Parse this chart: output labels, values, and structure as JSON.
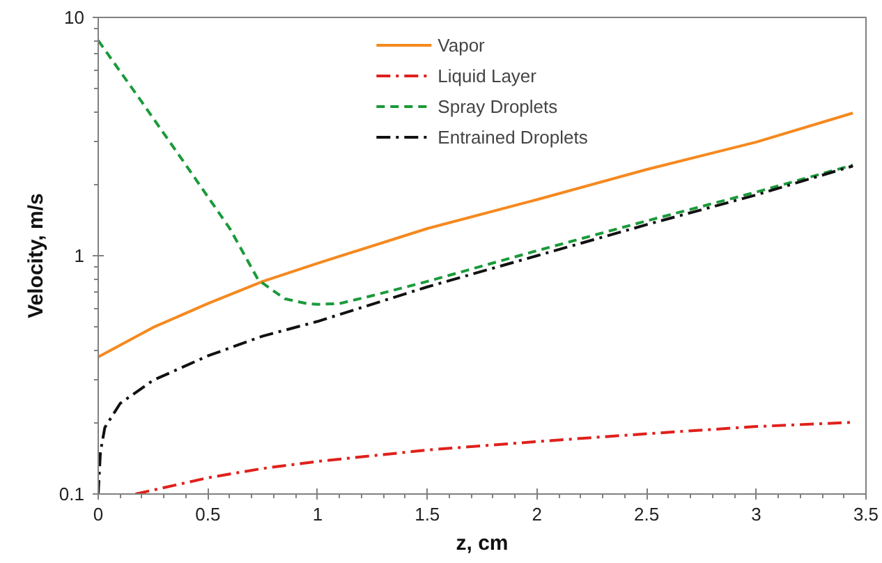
{
  "chart_data": {
    "type": "line",
    "xlabel": "z, cm",
    "ylabel": "Velocity, m/s",
    "log": "y",
    "xlim": [
      0,
      3.5
    ],
    "ylim": [
      0.1,
      10
    ],
    "xticks": [
      0,
      0.5,
      1,
      1.5,
      2,
      2.5,
      3,
      3.5
    ],
    "yticks": [
      0.1,
      1,
      10
    ],
    "grid": false,
    "legend": "top",
    "marker": "none",
    "series": [
      {
        "name": "Vapor",
        "color": "#f5891f",
        "line_style": "solid",
        "x": [
          0,
          0.25,
          0.5,
          0.75,
          1,
          1.5,
          2,
          2.5,
          3,
          3.44
        ],
        "values": [
          0.376,
          0.5,
          0.63,
          0.78,
          0.93,
          1.3,
          1.72,
          2.3,
          3.0,
          3.97
        ]
      },
      {
        "name": "Liquid Layer",
        "color": "#e0201b",
        "line_style": "dashdot",
        "x": [
          0.17,
          0.5,
          0.75,
          1,
          1.5,
          2,
          2.5,
          3,
          3.44
        ],
        "values": [
          0.1,
          0.117,
          0.128,
          0.137,
          0.153,
          0.166,
          0.179,
          0.192,
          0.2
        ]
      },
      {
        "name": "Spray Droplets",
        "color": "#1a9a3a",
        "line_style": "dashed",
        "x": [
          0,
          0.2,
          0.4,
          0.6,
          0.73,
          0.85,
          0.95,
          1,
          1.1,
          1.25,
          1.5,
          2,
          2.5,
          3,
          3.44
        ],
        "values": [
          8.0,
          4.4,
          2.4,
          1.3,
          0.79,
          0.66,
          0.63,
          0.625,
          0.63,
          0.68,
          0.78,
          1.05,
          1.4,
          1.85,
          2.4
        ]
      },
      {
        "name": "Entrained Droplets",
        "color": "#111111",
        "line_style": "dashdot",
        "x": [
          0,
          0.01,
          0.03,
          0.1,
          0.25,
          0.5,
          0.75,
          1,
          1.5,
          2,
          2.5,
          3,
          3.44
        ],
        "values": [
          0.1,
          0.15,
          0.19,
          0.24,
          0.3,
          0.38,
          0.46,
          0.53,
          0.74,
          1.0,
          1.35,
          1.8,
          2.38
        ]
      }
    ]
  }
}
